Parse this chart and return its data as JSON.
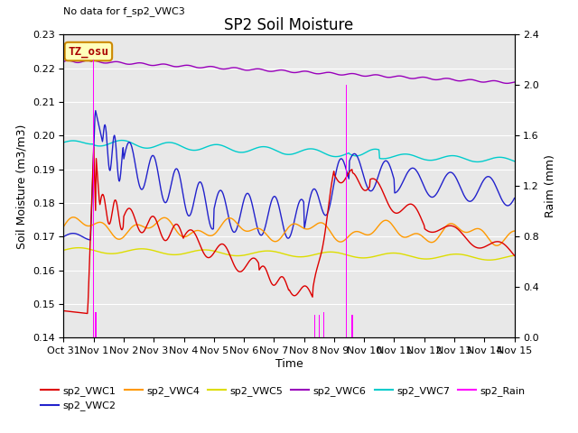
{
  "title": "SP2 Soil Moisture",
  "no_data_text": "No data for f_sp2_VWC3",
  "xlabel": "Time",
  "ylabel_left": "Soil Moisture (m3/m3)",
  "ylabel_right": "Raim (mm)",
  "tz_label": "TZ_osu",
  "ylim_left": [
    0.14,
    0.23
  ],
  "ylim_right": [
    0.0,
    2.4
  ],
  "plot_bg_color": "#e8e8e8",
  "colors": {
    "sp2_VWC1": "#dd0000",
    "sp2_VWC2": "#2222cc",
    "sp2_VWC4": "#ff9900",
    "sp2_VWC5": "#dddd00",
    "sp2_VWC6": "#9900bb",
    "sp2_VWC7": "#00cccc",
    "sp2_Rain": "#ff00ff"
  },
  "x_tick_labels": [
    "Oct 31",
    "Nov 1",
    "Nov 2",
    "Nov 3",
    "Nov 4",
    "Nov 5",
    "Nov 6",
    "Nov 7",
    "Nov 8",
    "Nov 9",
    "Nov 10",
    "Nov 11",
    "Nov 12",
    "Nov 13",
    "Nov 14",
    "Nov 15"
  ]
}
